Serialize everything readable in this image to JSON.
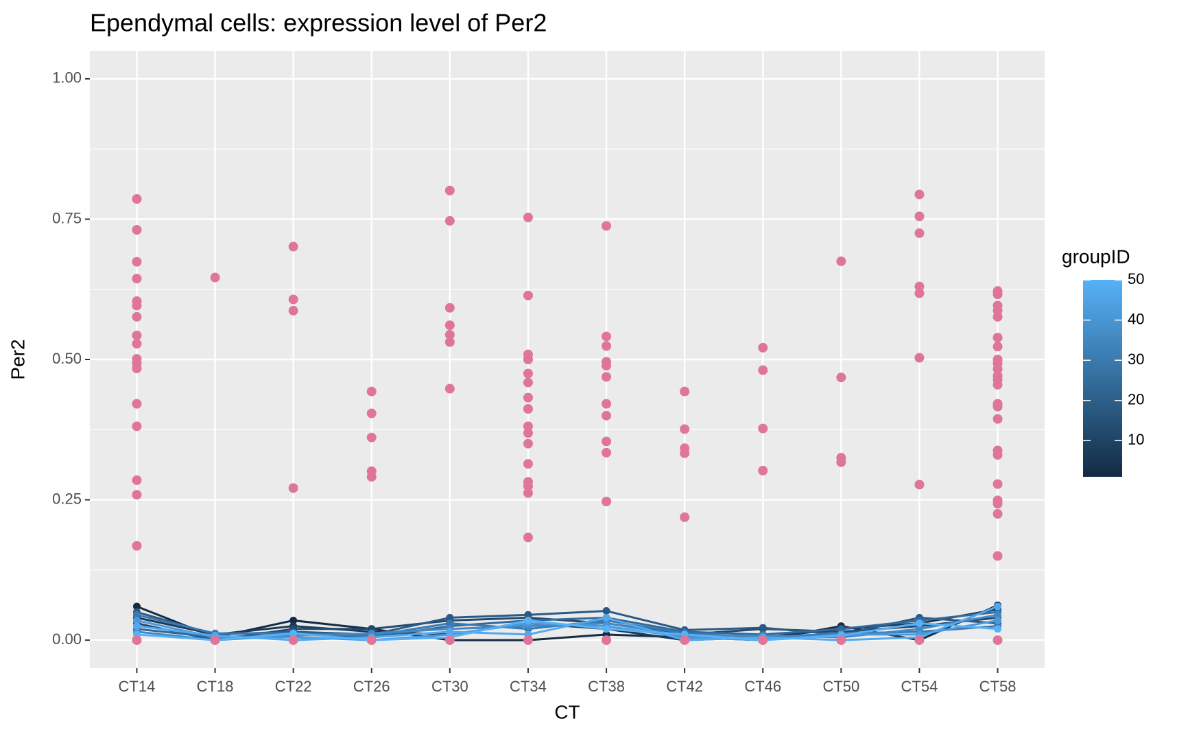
{
  "chart_data": {
    "type": "line-dot",
    "title": "Ependymal cells: expression level of Per2",
    "x_label": "CT",
    "y_label": "Per2",
    "categories": [
      "CT14",
      "CT18",
      "CT22",
      "CT26",
      "CT30",
      "CT34",
      "CT38",
      "CT42",
      "CT46",
      "CT50",
      "CT54",
      "CT58"
    ],
    "ylim": [
      -0.05,
      1.05
    ],
    "yticks": [
      {
        "value": 0,
        "label": "0.00"
      },
      {
        "value": 0.25,
        "label": "0.25"
      },
      {
        "value": 0.5,
        "label": "0.50"
      },
      {
        "value": 0.75,
        "label": "0.75"
      },
      {
        "value": 1,
        "label": "1.00"
      }
    ],
    "grid": true,
    "points": {
      "color": "#df7599",
      "values": [
        [
          0.786,
          0.731,
          0.674,
          0.644,
          0.604,
          0.596,
          0.576,
          0.543,
          0.528,
          0.501,
          0.493,
          0.484,
          0.421,
          0.381,
          0.285,
          0.259,
          0.168,
          0
        ],
        [
          0.646,
          0
        ],
        [
          0.701,
          0.607,
          0.587,
          0.271,
          0
        ],
        [
          0.443,
          0.404,
          0.361,
          0.301,
          0.291,
          0
        ],
        [
          0.801,
          0.747,
          0.592,
          0.561,
          0.544,
          0.531,
          0.448,
          0
        ],
        [
          0.753,
          0.614,
          0.509,
          0.5,
          0.475,
          0.459,
          0.432,
          0.412,
          0.381,
          0.369,
          0.35,
          0.314,
          0.282,
          0.274,
          0.262,
          0.183,
          0
        ],
        [
          0.738,
          0.541,
          0.524,
          0.496,
          0.489,
          0.469,
          0.421,
          0.4,
          0.354,
          0.334,
          0.247,
          0
        ],
        [
          0.443,
          0.376,
          0.342,
          0.333,
          0.219,
          0
        ],
        [
          0.521,
          0.481,
          0.377,
          0.302,
          0
        ],
        [
          0.675,
          0.468,
          0.325,
          0.317,
          0
        ],
        [
          0.794,
          0.755,
          0.725,
          0.63,
          0.618,
          0.503,
          0.277,
          0
        ],
        [
          0.622,
          0.616,
          0.596,
          0.587,
          0.576,
          0.539,
          0.523,
          0.5,
          0.493,
          0.483,
          0.471,
          0.464,
          0.455,
          0.421,
          0.416,
          0.394,
          0.338,
          0.33,
          0.278,
          0.249,
          0.243,
          0.225,
          0.15,
          0
        ]
      ]
    },
    "series": [
      {
        "color": "#132B43",
        "values": [
          0.06,
          0.005,
          0.035,
          0.02,
          0,
          0,
          0.01,
          0.005,
          0,
          0.025,
          0,
          0.062
        ]
      },
      {
        "color": "#1A3A5A",
        "values": [
          0.04,
          0.01,
          0.025,
          0.015,
          0.01,
          0.03,
          0.02,
          0,
          0.005,
          0.02,
          0.03,
          0.055
        ]
      },
      {
        "color": "#22496F",
        "values": [
          0.03,
          0,
          0.02,
          0.02,
          0.035,
          0.04,
          0.03,
          0.01,
          0.02,
          0.015,
          0.025,
          0.04
        ]
      },
      {
        "color": "#2A5985",
        "values": [
          0.05,
          0.01,
          0.015,
          0.01,
          0.04,
          0.045,
          0.052,
          0.018,
          0.022,
          0.01,
          0.04,
          0.03
        ]
      },
      {
        "color": "#32699A",
        "values": [
          0.02,
          0.005,
          0.01,
          0.005,
          0.025,
          0.035,
          0.04,
          0.015,
          0.01,
          0.02,
          0.035,
          0.05
        ]
      },
      {
        "color": "#3A79B0",
        "values": [
          0.045,
          0.012,
          0.012,
          0.008,
          0.03,
          0.02,
          0.035,
          0.012,
          0.005,
          0.012,
          0.015,
          0.025
        ]
      },
      {
        "color": "#4288C5",
        "values": [
          0.015,
          0,
          0.008,
          0.012,
          0.02,
          0.025,
          0.03,
          0.008,
          0.008,
          0.005,
          0.02,
          0.045
        ]
      },
      {
        "color": "#4A98DA",
        "values": [
          0.035,
          0.005,
          0.005,
          0,
          0.01,
          0.03,
          0.025,
          0.005,
          0,
          0.01,
          0.01,
          0.035
        ]
      },
      {
        "color": "#52A8EF",
        "values": [
          0.025,
          0.008,
          0,
          0.005,
          0.015,
          0.01,
          0.04,
          0,
          0.005,
          0,
          0.005,
          0.06
        ]
      },
      {
        "color": "#56B1F7",
        "values": [
          0.01,
          0,
          0.012,
          0,
          0.005,
          0.035,
          0.02,
          0.01,
          0,
          0.008,
          0.03,
          0.02
        ]
      }
    ],
    "colorbar": {
      "title": "groupID",
      "limits": [
        1,
        50
      ],
      "ticks": [
        10,
        20,
        30,
        40,
        50
      ],
      "low": "#132B43",
      "high": "#56B1F7"
    }
  }
}
